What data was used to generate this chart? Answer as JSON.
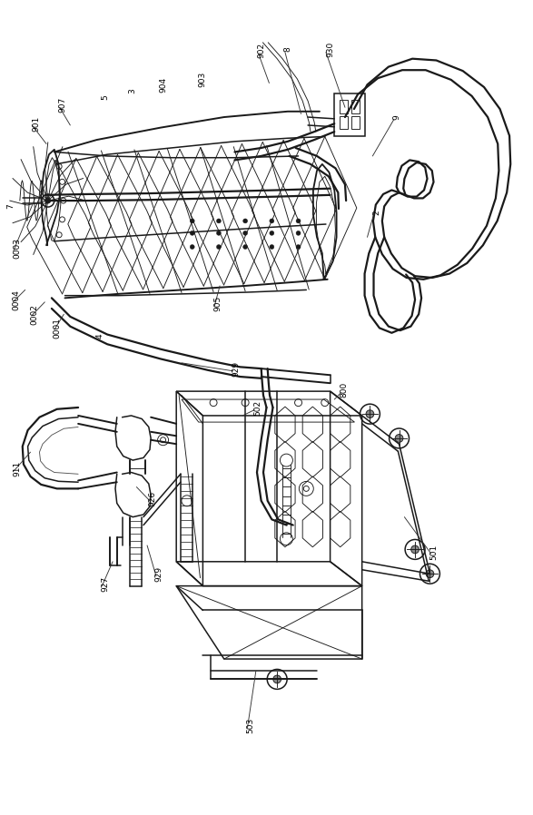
{
  "bg_color": "#ffffff",
  "lc": "#1a1a1a",
  "lw": 1.1,
  "tlw": 0.65,
  "thklw": 1.6,
  "fs": 6.5,
  "figsize": [
    5.87,
    8.98
  ],
  "dpi": 100
}
